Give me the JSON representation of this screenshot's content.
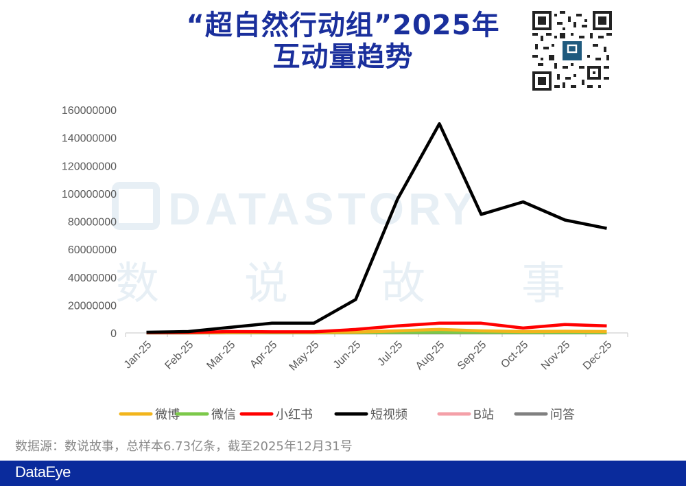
{
  "title": {
    "line1": "“超自然行动组”2025年",
    "line2": "互动量趋势"
  },
  "watermark": {
    "en": "DATASTORY",
    "cn": [
      "数",
      "说",
      "故",
      "事"
    ]
  },
  "source_note": "数据源：数说故事，总样本6.73亿条，截至2025年12月31号",
  "footer": {
    "brand": "DataEye",
    "color": "#0a2b9c"
  },
  "qr_code": {
    "icon": "qr-code-icon"
  },
  "chart_data": {
    "type": "line",
    "title": "“超自然行动组”2025年互动量趋势",
    "xlabel": "",
    "ylabel": "",
    "ylim": [
      0,
      160000000
    ],
    "yticks": [
      "0",
      "20000000",
      "40000000",
      "60000000",
      "80000000",
      "100000000",
      "120000000",
      "140000000",
      "160000000"
    ],
    "categories": [
      "Jan-25",
      "Feb-25",
      "Mar-25",
      "Apr-25",
      "May-25",
      "Jun-25",
      "Jul-25",
      "Aug-25",
      "Sep-25",
      "Oct-25",
      "Nov-25",
      "Dec-25"
    ],
    "grid": false,
    "legend_position": "bottom",
    "series": [
      {
        "name": "微博",
        "color": "#f2b51c",
        "values": [
          100000,
          100000,
          300000,
          500000,
          400000,
          600000,
          1500000,
          2500000,
          1500000,
          1000000,
          1200000,
          1000000
        ]
      },
      {
        "name": "微信",
        "color": "#7cc94a",
        "values": [
          50000,
          50000,
          100000,
          150000,
          150000,
          200000,
          300000,
          400000,
          300000,
          250000,
          250000,
          250000
        ]
      },
      {
        "name": "小红书",
        "color": "#ff0000",
        "values": [
          200000,
          300000,
          1000000,
          800000,
          800000,
          2500000,
          5000000,
          7000000,
          7000000,
          3500000,
          6000000,
          5000000
        ]
      },
      {
        "name": "短视频",
        "color": "#000000",
        "values": [
          500000,
          1000000,
          4000000,
          7000000,
          7000000,
          24000000,
          96000000,
          150000000,
          85000000,
          94000000,
          81000000,
          75000000
        ]
      },
      {
        "name": "B站",
        "color": "#f4a0a8",
        "values": [
          100000,
          200000,
          500000,
          400000,
          300000,
          400000,
          600000,
          800000,
          600000,
          500000,
          500000,
          500000
        ]
      },
      {
        "name": "问答",
        "color": "#808080",
        "values": [
          20000,
          20000,
          30000,
          30000,
          30000,
          40000,
          50000,
          60000,
          50000,
          40000,
          40000,
          40000
        ]
      }
    ]
  }
}
